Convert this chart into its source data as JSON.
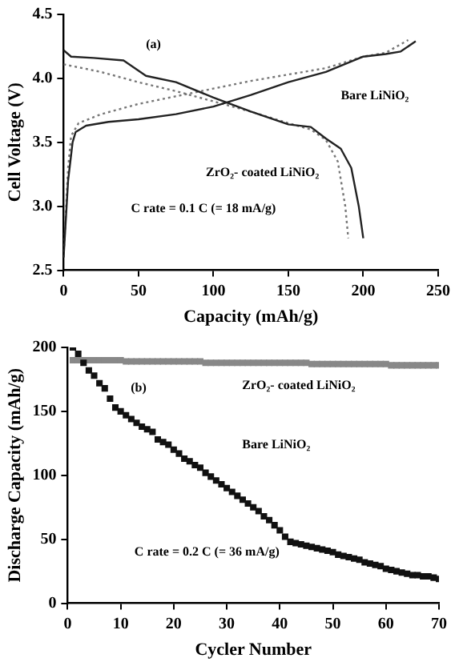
{
  "chart_data": [
    {
      "type": "line",
      "xlabel": "Capacity (mAh/g)",
      "ylabel": "Cell Voltage (V)",
      "xlim": [
        0,
        250
      ],
      "xticks": [
        0,
        50,
        100,
        150,
        200,
        250
      ],
      "ylim": [
        2.5,
        4.5
      ],
      "yticks": [
        2.5,
        {
          "value": 3,
          "label": "3.0"
        },
        3.5,
        {
          "value": 4,
          "label": "4.0"
        },
        4.5
      ],
      "grid": false,
      "legend": false,
      "marker": "none",
      "series": [
        {
          "color": "#222222",
          "line_style": "solid",
          "x": [
            0,
            3,
            6,
            8,
            15,
            30,
            50,
            75,
            100,
            125,
            150,
            175,
            200,
            215,
            225,
            235
          ],
          "values": [
            2.6,
            3.2,
            3.5,
            3.58,
            3.63,
            3.66,
            3.68,
            3.72,
            3.78,
            3.87,
            3.97,
            4.05,
            4.17,
            4.19,
            4.21,
            4.29
          ]
        },
        {
          "color": "#222222",
          "line_style": "solid",
          "x": [
            0,
            5,
            20,
            40,
            55,
            75,
            100,
            125,
            150,
            165,
            175,
            185,
            192,
            197,
            200
          ],
          "values": [
            4.22,
            4.17,
            4.16,
            4.14,
            4.02,
            3.97,
            3.85,
            3.74,
            3.64,
            3.62,
            3.53,
            3.45,
            3.3,
            3.0,
            2.75
          ]
        },
        {
          "color": "#777777",
          "line_style": "dotted",
          "x": [
            0,
            3,
            5,
            10,
            25,
            50,
            75,
            100,
            125,
            150,
            175,
            200,
            215,
            230
          ],
          "values": [
            2.6,
            3.3,
            3.55,
            3.65,
            3.72,
            3.8,
            3.86,
            3.92,
            3.98,
            4.03,
            4.08,
            4.17,
            4.2,
            4.3
          ]
        },
        {
          "color": "#777777",
          "line_style": "dotted",
          "x": [
            0,
            25,
            50,
            75,
            100,
            125,
            150,
            165,
            175,
            183,
            188,
            190
          ],
          "values": [
            4.11,
            4.05,
            3.97,
            3.9,
            3.82,
            3.74,
            3.65,
            3.6,
            3.52,
            3.35,
            3.0,
            2.75
          ]
        }
      ],
      "annotations": [
        "(a)",
        "Bare LiNiO₂",
        "ZrO₂- coated LiNiO₂",
        "C rate = 0.1 C (= 18 mA/g)"
      ]
    },
    {
      "type": "scatter",
      "xlabel": "Cycler Number",
      "ylabel": "Discharge Capacity (mAh/g)",
      "xlim": [
        0,
        70
      ],
      "xticks": [
        0,
        10,
        20,
        30,
        40,
        50,
        60,
        70
      ],
      "ylim": [
        0,
        200
      ],
      "yticks": [
        0,
        50,
        100,
        150,
        200
      ],
      "grid": false,
      "legend": false,
      "marker": "square",
      "x": [
        1,
        2,
        3,
        4,
        5,
        6,
        7,
        8,
        9,
        10,
        11,
        12,
        13,
        14,
        15,
        16,
        17,
        18,
        19,
        20,
        21,
        22,
        23,
        24,
        25,
        26,
        27,
        28,
        29,
        30,
        31,
        32,
        33,
        34,
        35,
        36,
        37,
        38,
        39,
        40,
        41,
        42,
        43,
        44,
        45,
        46,
        47,
        48,
        49,
        50,
        51,
        52,
        53,
        54,
        55,
        56,
        57,
        58,
        59,
        60,
        61,
        62,
        63,
        64,
        65,
        66,
        67,
        68,
        69,
        70
      ],
      "series": [
        {
          "color": "#111111",
          "values": [
            200,
            195,
            188,
            182,
            178,
            172,
            168,
            160,
            153,
            150,
            147,
            144,
            141,
            138,
            136,
            134,
            128,
            126,
            124,
            120,
            117,
            113,
            111,
            108,
            106,
            102,
            99,
            96,
            93,
            90,
            87,
            84,
            81,
            78,
            75,
            72,
            68,
            65,
            61,
            57,
            52,
            48,
            47,
            46,
            45,
            44,
            43,
            42,
            41,
            40,
            38,
            37,
            36,
            35,
            34,
            32,
            31,
            30,
            29,
            27,
            26,
            25,
            24,
            23,
            22,
            22,
            21,
            21,
            20,
            19
          ]
        },
        {
          "color": "#888888",
          "values": [
            190,
            190,
            190,
            190,
            190,
            190,
            190,
            190,
            190,
            190,
            189,
            189,
            189,
            189,
            189,
            189,
            189,
            189,
            189,
            189,
            189,
            189,
            189,
            189,
            189,
            188,
            188,
            188,
            188,
            188,
            188,
            188,
            188,
            188,
            188,
            188,
            188,
            188,
            188,
            188,
            188,
            188,
            188,
            188,
            188,
            187,
            187,
            187,
            187,
            187,
            187,
            187,
            187,
            187,
            187,
            187,
            187,
            187,
            187,
            187,
            186,
            186,
            186,
            186,
            186,
            186,
            186,
            186,
            186,
            186
          ]
        }
      ],
      "annotations": [
        "(b)",
        "ZrO₂- coated LiNiO₂",
        "Bare LiNiO₂",
        "C rate = 0.2 C (= 36 mA/g)"
      ]
    }
  ]
}
